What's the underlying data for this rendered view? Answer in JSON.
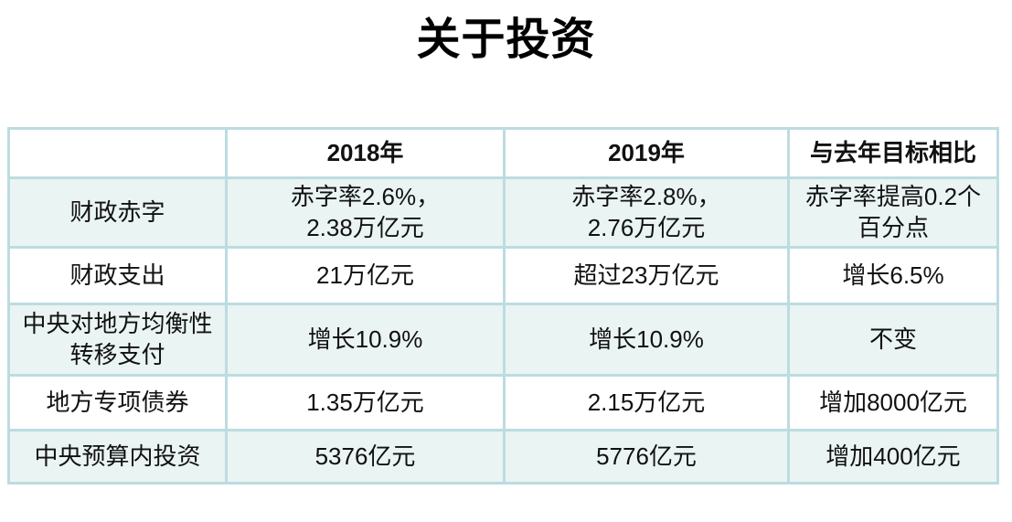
{
  "title": "关于投资",
  "colors": {
    "table_border": "#bcdce0",
    "row_stripe": "#eaf4f3",
    "row_plain": "#ffffff",
    "text": "#111111"
  },
  "table": {
    "columns": [
      "",
      "2018年",
      "2019年",
      "与去年目标相比"
    ],
    "rows": [
      {
        "cells": [
          "财政赤字",
          "赤字率2.6%，\n2.38万亿元",
          "赤字率2.8%，\n2.76万亿元",
          "赤字率提高0.2个\n百分点"
        ]
      },
      {
        "cells": [
          "财政支出",
          "21万亿元",
          "超过23万亿元",
          "增长6.5%"
        ]
      },
      {
        "cells": [
          "中央对地方均衡性\n转移支付",
          "增长10.9%",
          "增长10.9%",
          "不变"
        ]
      },
      {
        "cells": [
          "地方专项债券",
          "1.35万亿元",
          "2.15万亿元",
          "增加8000亿元"
        ]
      },
      {
        "cells": [
          "中央预算内投资",
          "5376亿元",
          "5776亿元",
          "增加400亿元"
        ]
      }
    ]
  }
}
